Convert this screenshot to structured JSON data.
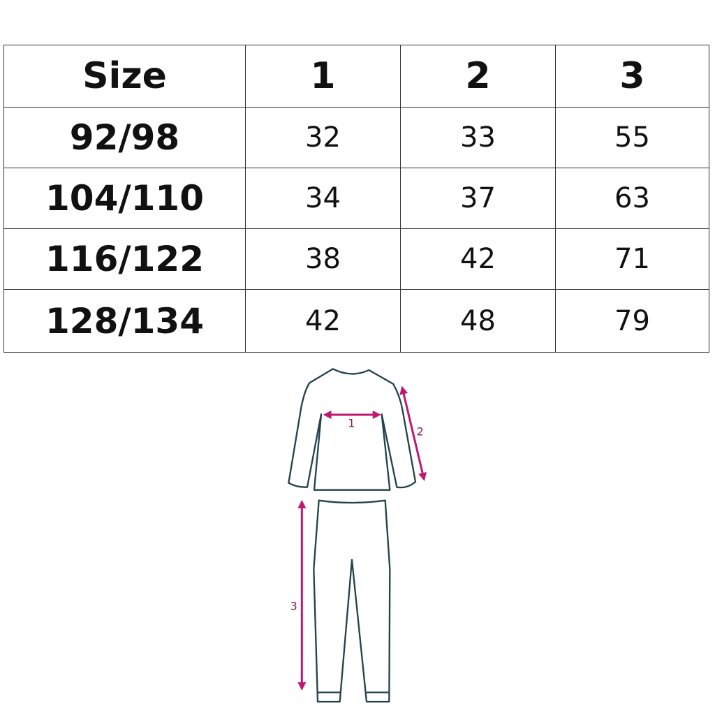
{
  "table": {
    "header": [
      "Size",
      "1",
      "2",
      "3"
    ],
    "rows": [
      [
        "92/98",
        "32",
        "33",
        "55"
      ],
      [
        "104/110",
        "34",
        "37",
        "63"
      ],
      [
        "116/122",
        "38",
        "42",
        "71"
      ],
      [
        "128/134",
        "42",
        "48",
        "79"
      ]
    ]
  },
  "diagram": {
    "labels": [
      "1",
      "2",
      "3"
    ],
    "outline_color": "#22434a",
    "arrow_color": "#c0186f"
  }
}
